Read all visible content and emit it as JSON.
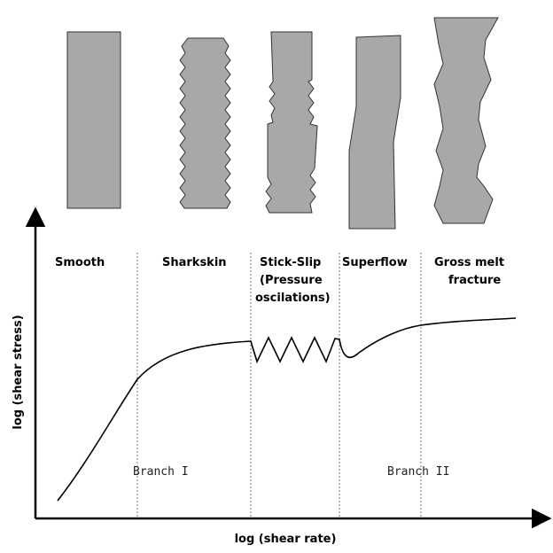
{
  "regions": [
    {
      "lines": [
        "Smooth"
      ]
    },
    {
      "lines": [
        "Sharkskin"
      ]
    },
    {
      "lines": [
        "Stick-Slip",
        "(Pressure",
        "oscilations)"
      ]
    },
    {
      "lines": [
        "Superflow"
      ]
    },
    {
      "lines": [
        "Gross melt",
        "fracture"
      ]
    }
  ],
  "branches": [
    "Branch I",
    "Branch II"
  ],
  "axes": {
    "y_label": "log (shear stress)",
    "x_label": "log (shear rate)"
  }
}
